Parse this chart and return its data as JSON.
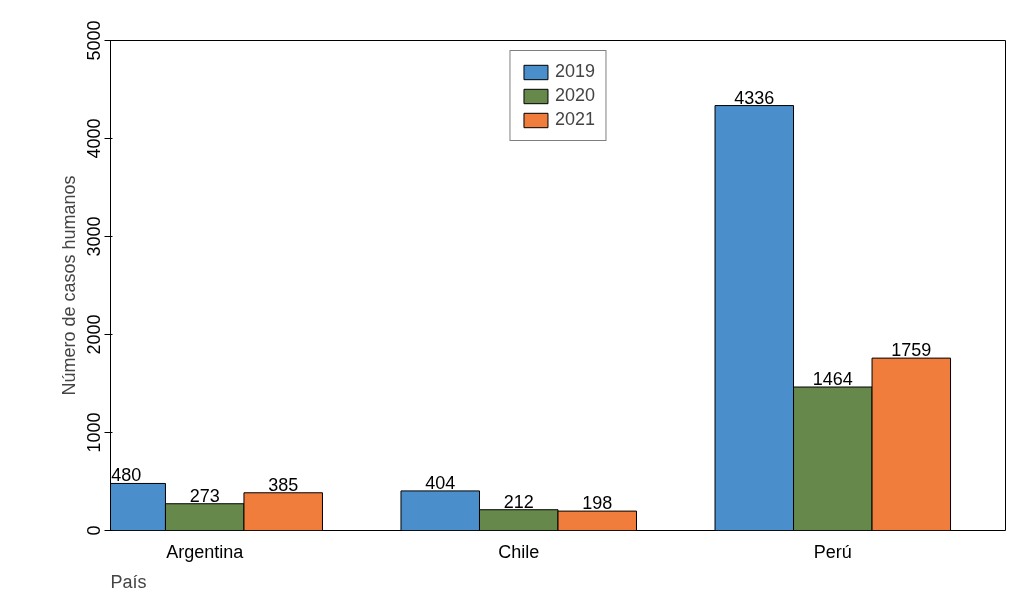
{
  "chart_data": {
    "type": "bar",
    "xlabel": "País",
    "ylabel": "Número de casos humanos",
    "categories": [
      "Argentina",
      "Chile",
      "Perú"
    ],
    "series": [
      {
        "name": "2019",
        "color": "#4a8fcb",
        "values": [
          480,
          404,
          4336
        ]
      },
      {
        "name": "2020",
        "color": "#66884a",
        "values": [
          273,
          212,
          1464
        ]
      },
      {
        "name": "2021",
        "color": "#f07d3b",
        "values": [
          385,
          198,
          1759
        ]
      }
    ],
    "ylim": [
      0,
      5000
    ],
    "yticks": [
      0,
      1000,
      2000,
      3000,
      4000,
      5000
    ],
    "data_labels": true,
    "grid": false,
    "legend": "top"
  }
}
